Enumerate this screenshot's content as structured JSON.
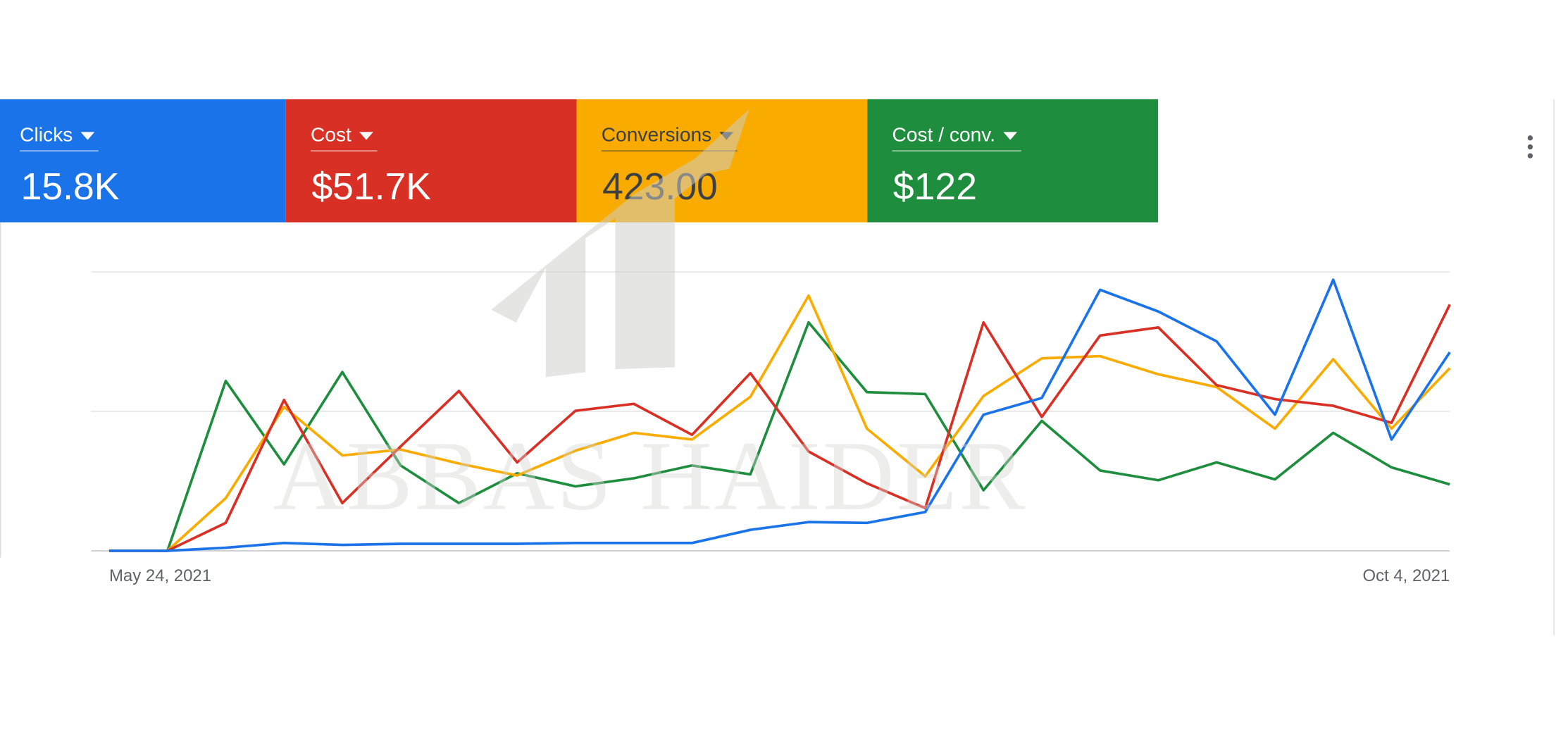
{
  "watermark": "ABBAS HAIDER",
  "chart_data": {
    "type": "line",
    "categories": [
      "May 24, 2021",
      null,
      null,
      null,
      null,
      null,
      null,
      null,
      null,
      null,
      null,
      null,
      null,
      null,
      null,
      null,
      null,
      null,
      null,
      null,
      null,
      null,
      null,
      "Oct 4, 2021"
    ],
    "ylim": [
      0,
      100
    ],
    "yticks": [
      0,
      50,
      100
    ],
    "grid": true,
    "series": [
      {
        "name": "Clicks",
        "total": "15.8K",
        "color": "#1a73e8",
        "text_color": "#ffffff",
        "values": [
          0,
          0,
          1.1,
          2.8,
          2.1,
          2.5,
          2.5,
          2.5,
          2.8,
          2.8,
          2.8,
          7.5,
          10.3,
          10.0,
          13.9,
          48.8,
          54.8,
          93.6,
          85.8,
          75.1,
          48.8,
          97.2,
          39.9,
          71.2
        ]
      },
      {
        "name": "Cost",
        "total": "$51.7K",
        "color": "#d93025",
        "text_color": "#ffffff",
        "values": [
          0,
          0,
          10,
          54.1,
          17.1,
          37.4,
          57.3,
          31.7,
          50.2,
          52.7,
          41.6,
          63.7,
          35.6,
          24.2,
          15.3,
          81.9,
          48,
          77.2,
          80.1,
          59.4,
          54.4,
          52,
          45.9,
          88.3
        ]
      },
      {
        "name": "Conversions",
        "total": "423.00",
        "color": "#f9ab00",
        "text_color": "#3c4043",
        "values": [
          0,
          0,
          18.9,
          51.6,
          34.2,
          36.3,
          31.3,
          27,
          35.9,
          42.3,
          39.9,
          55.2,
          91.5,
          43.8,
          26.7,
          55.5,
          69,
          69.8,
          63.3,
          58.7,
          43.8,
          68.7,
          43.8,
          65.5
        ]
      },
      {
        "name": "Cost / conv.",
        "total": "$122",
        "color": "#1e8e3e",
        "text_color": "#ffffff",
        "values": [
          0,
          0,
          60.9,
          31,
          64.1,
          30.6,
          17.1,
          27.8,
          23.1,
          26,
          30.6,
          27.4,
          81.9,
          56.9,
          56.2,
          21.7,
          46.6,
          28.8,
          25.3,
          31.7,
          25.6,
          42.3,
          29.9,
          23.8
        ]
      }
    ]
  }
}
